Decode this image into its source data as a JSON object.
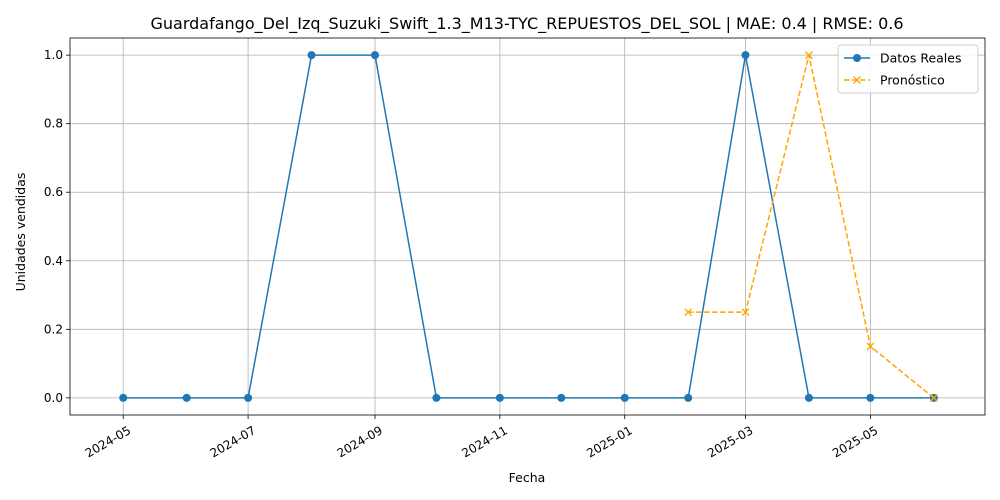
{
  "chart_data": {
    "type": "line",
    "title": "Guardafango_Del_Izq_Suzuki_Swift_1.3_M13-TYC_REPUESTOS_DEL_SOL | MAE: 0.4 | RMSE: 0.6",
    "xlabel": "Fecha",
    "ylabel": "Unidades vendidas",
    "x_ticks": [
      "2024-05",
      "2024-07",
      "2024-09",
      "2024-11",
      "2025-01",
      "2025-03",
      "2025-05"
    ],
    "y_ticks": [
      "0.0",
      "0.2",
      "0.4",
      "0.6",
      "0.8",
      "1.0"
    ],
    "ylim": [
      -0.05,
      1.05
    ],
    "xlim": [
      "2024-04-05",
      "2025-06-26"
    ],
    "grid": true,
    "legend_position": "top-right",
    "series": [
      {
        "name": "Datos Reales",
        "color": "#1f77b4",
        "linestyle": "solid",
        "marker": "circle",
        "x": [
          "2024-05-01",
          "2024-06-01",
          "2024-07-01",
          "2024-08-01",
          "2024-09-01",
          "2024-10-01",
          "2024-11-01",
          "2024-12-01",
          "2025-01-01",
          "2025-02-01",
          "2025-03-01",
          "2025-04-01",
          "2025-05-01",
          "2025-06-01"
        ],
        "values": [
          0,
          0,
          0,
          1,
          1,
          0,
          0,
          0,
          0,
          0,
          1,
          0,
          0,
          0
        ]
      },
      {
        "name": "Pronóstico",
        "color": "#ffa500",
        "linestyle": "dashed",
        "marker": "x",
        "x": [
          "2025-02-01",
          "2025-03-01",
          "2025-04-01",
          "2025-05-01",
          "2025-06-01"
        ],
        "values": [
          0.25,
          0.25,
          1.0,
          0.15,
          0.0
        ]
      }
    ]
  }
}
